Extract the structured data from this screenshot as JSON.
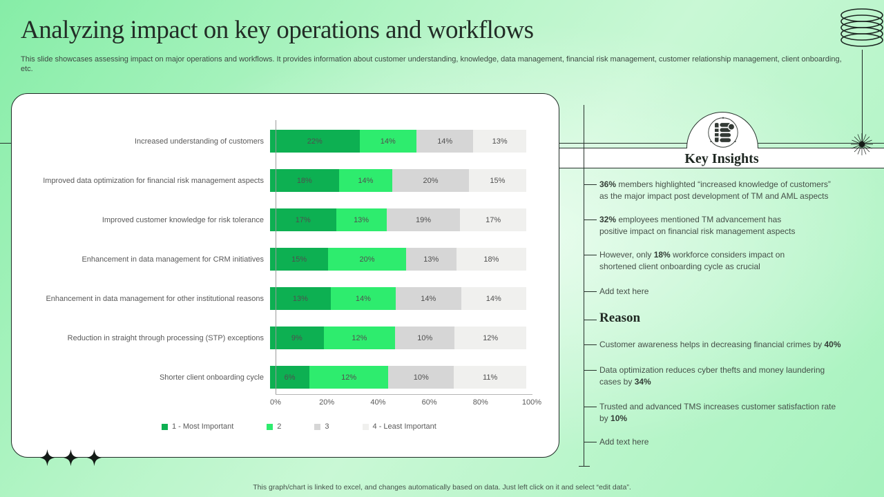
{
  "header": {
    "title": "Analyzing impact on key operations and workflows",
    "subtitle": "This slide showcases assessing impact on major operations and workflows. It provides information about customer understanding, knowledge, data management, financial risk management, customer relationship management, client onboarding, etc."
  },
  "chart_data": {
    "type": "bar",
    "orientation": "horizontal",
    "stacked": true,
    "normalized_to_full_width": true,
    "categories": [
      "Increased understanding  of customers",
      "Improved data optimization for financial risk management aspects",
      "Improved customer knowledge for risk tolerance",
      "Enhancement in data management for CRM initiatives",
      "Enhancement in data management for other institutional reasons",
      "Reduction in straight through processing (STP) exceptions",
      "Shorter client onboarding cycle"
    ],
    "series": [
      {
        "name": "1 - Most Important",
        "color": "#0db052",
        "values": [
          22,
          18,
          17,
          15,
          13,
          9,
          6
        ]
      },
      {
        "name": "2",
        "color": "#2eec6e",
        "values": [
          14,
          14,
          13,
          20,
          14,
          12,
          12
        ]
      },
      {
        "name": "3",
        "color": "#d6d6d6",
        "values": [
          14,
          20,
          19,
          13,
          14,
          10,
          10
        ]
      },
      {
        "name": "4 - Least Important",
        "color": "#f0f0ee",
        "values": [
          13,
          15,
          17,
          18,
          14,
          12,
          11
        ]
      }
    ],
    "value_suffix": "%",
    "x_ticks": [
      "0%",
      "20%",
      "40%",
      "60%",
      "80%",
      "100%"
    ],
    "xlim": [
      0,
      100
    ],
    "legend_position": "bottom",
    "grid": false
  },
  "insights": {
    "title": "Key Insights",
    "items": [
      {
        "text": "**36%** members highlighted “increased knowledge of customers”\nas the major impact post development  of TM and AML aspects"
      },
      {
        "text": "**32%** employees mentioned TM advancement  has\npositive  impact on financial  risk management  aspects"
      },
      {
        "text": "However,  only **18%** workforce  considers impact on\nshortened  client onboarding  cycle as crucial"
      },
      {
        "text": "Add text here",
        "placeholder": true
      },
      {
        "heading": "Reason"
      },
      {
        "text": "Customer awareness  helps in decreasing  financial  crimes by **40%**"
      },
      {
        "text": "Data optimization reduces  cyber thefts and money laundering\ncases by **34%**"
      },
      {
        "text": "Trusted  and advanced  TMS increases  customer satisfaction rate\nby **10%**"
      },
      {
        "text": "Add text here",
        "placeholder": true
      }
    ]
  },
  "footer": {
    "note": "This graph/chart is linked to excel, and changes automatically based on data. Just left click on it and select “edit data”."
  },
  "icons": {
    "dome_badge": "notebook-icon",
    "top_right": "coil-spring-icon",
    "line_end": "starburst-icon",
    "card_bottom": "four-point-star-icon"
  },
  "colors": {
    "background_green": "#9df1b6",
    "card_background": "#ffffff",
    "line_dark": "#26302b",
    "text_dark": "#232d27",
    "text_gray": "#595959"
  }
}
